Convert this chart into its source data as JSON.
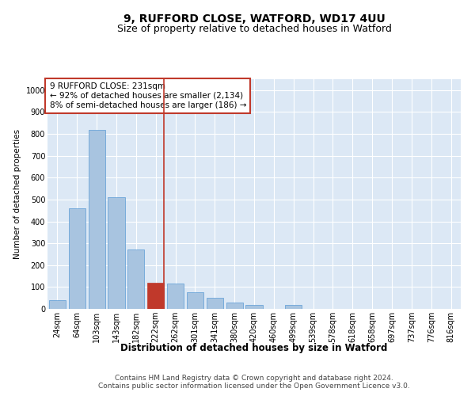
{
  "title": "9, RUFFORD CLOSE, WATFORD, WD17 4UU",
  "subtitle": "Size of property relative to detached houses in Watford",
  "xlabel": "Distribution of detached houses by size in Watford",
  "ylabel": "Number of detached properties",
  "categories": [
    "24sqm",
    "64sqm",
    "103sqm",
    "143sqm",
    "182sqm",
    "222sqm",
    "262sqm",
    "301sqm",
    "341sqm",
    "380sqm",
    "420sqm",
    "460sqm",
    "499sqm",
    "539sqm",
    "578sqm",
    "618sqm",
    "658sqm",
    "697sqm",
    "737sqm",
    "776sqm",
    "816sqm"
  ],
  "bar_values": [
    40,
    460,
    820,
    510,
    270,
    120,
    115,
    75,
    50,
    30,
    18,
    0,
    18,
    0,
    0,
    0,
    0,
    0,
    0,
    0,
    0
  ],
  "bar_color": "#a8c4e0",
  "bar_edge_color": "#5b9bd5",
  "highlight_bar_index": 5,
  "highlight_bar_color": "#c0392b",
  "highlight_bar_edge_color": "#c0392b",
  "vline_color": "#c0392b",
  "annotation_text": "9 RUFFORD CLOSE: 231sqm\n← 92% of detached houses are smaller (2,134)\n8% of semi-detached houses are larger (186) →",
  "annotation_box_facecolor": "#ffffff",
  "annotation_box_edgecolor": "#c0392b",
  "ylim": [
    0,
    1050
  ],
  "yticks": [
    0,
    100,
    200,
    300,
    400,
    500,
    600,
    700,
    800,
    900,
    1000
  ],
  "fig_bg_color": "#ffffff",
  "plot_bg_color": "#dce8f5",
  "grid_color": "#ffffff",
  "title_fontsize": 10,
  "subtitle_fontsize": 9,
  "xlabel_fontsize": 8.5,
  "ylabel_fontsize": 7.5,
  "tick_fontsize": 7,
  "annotation_fontsize": 7.5,
  "footer_fontsize": 6.5,
  "footer_text": "Contains HM Land Registry data © Crown copyright and database right 2024.\nContains public sector information licensed under the Open Government Licence v3.0."
}
